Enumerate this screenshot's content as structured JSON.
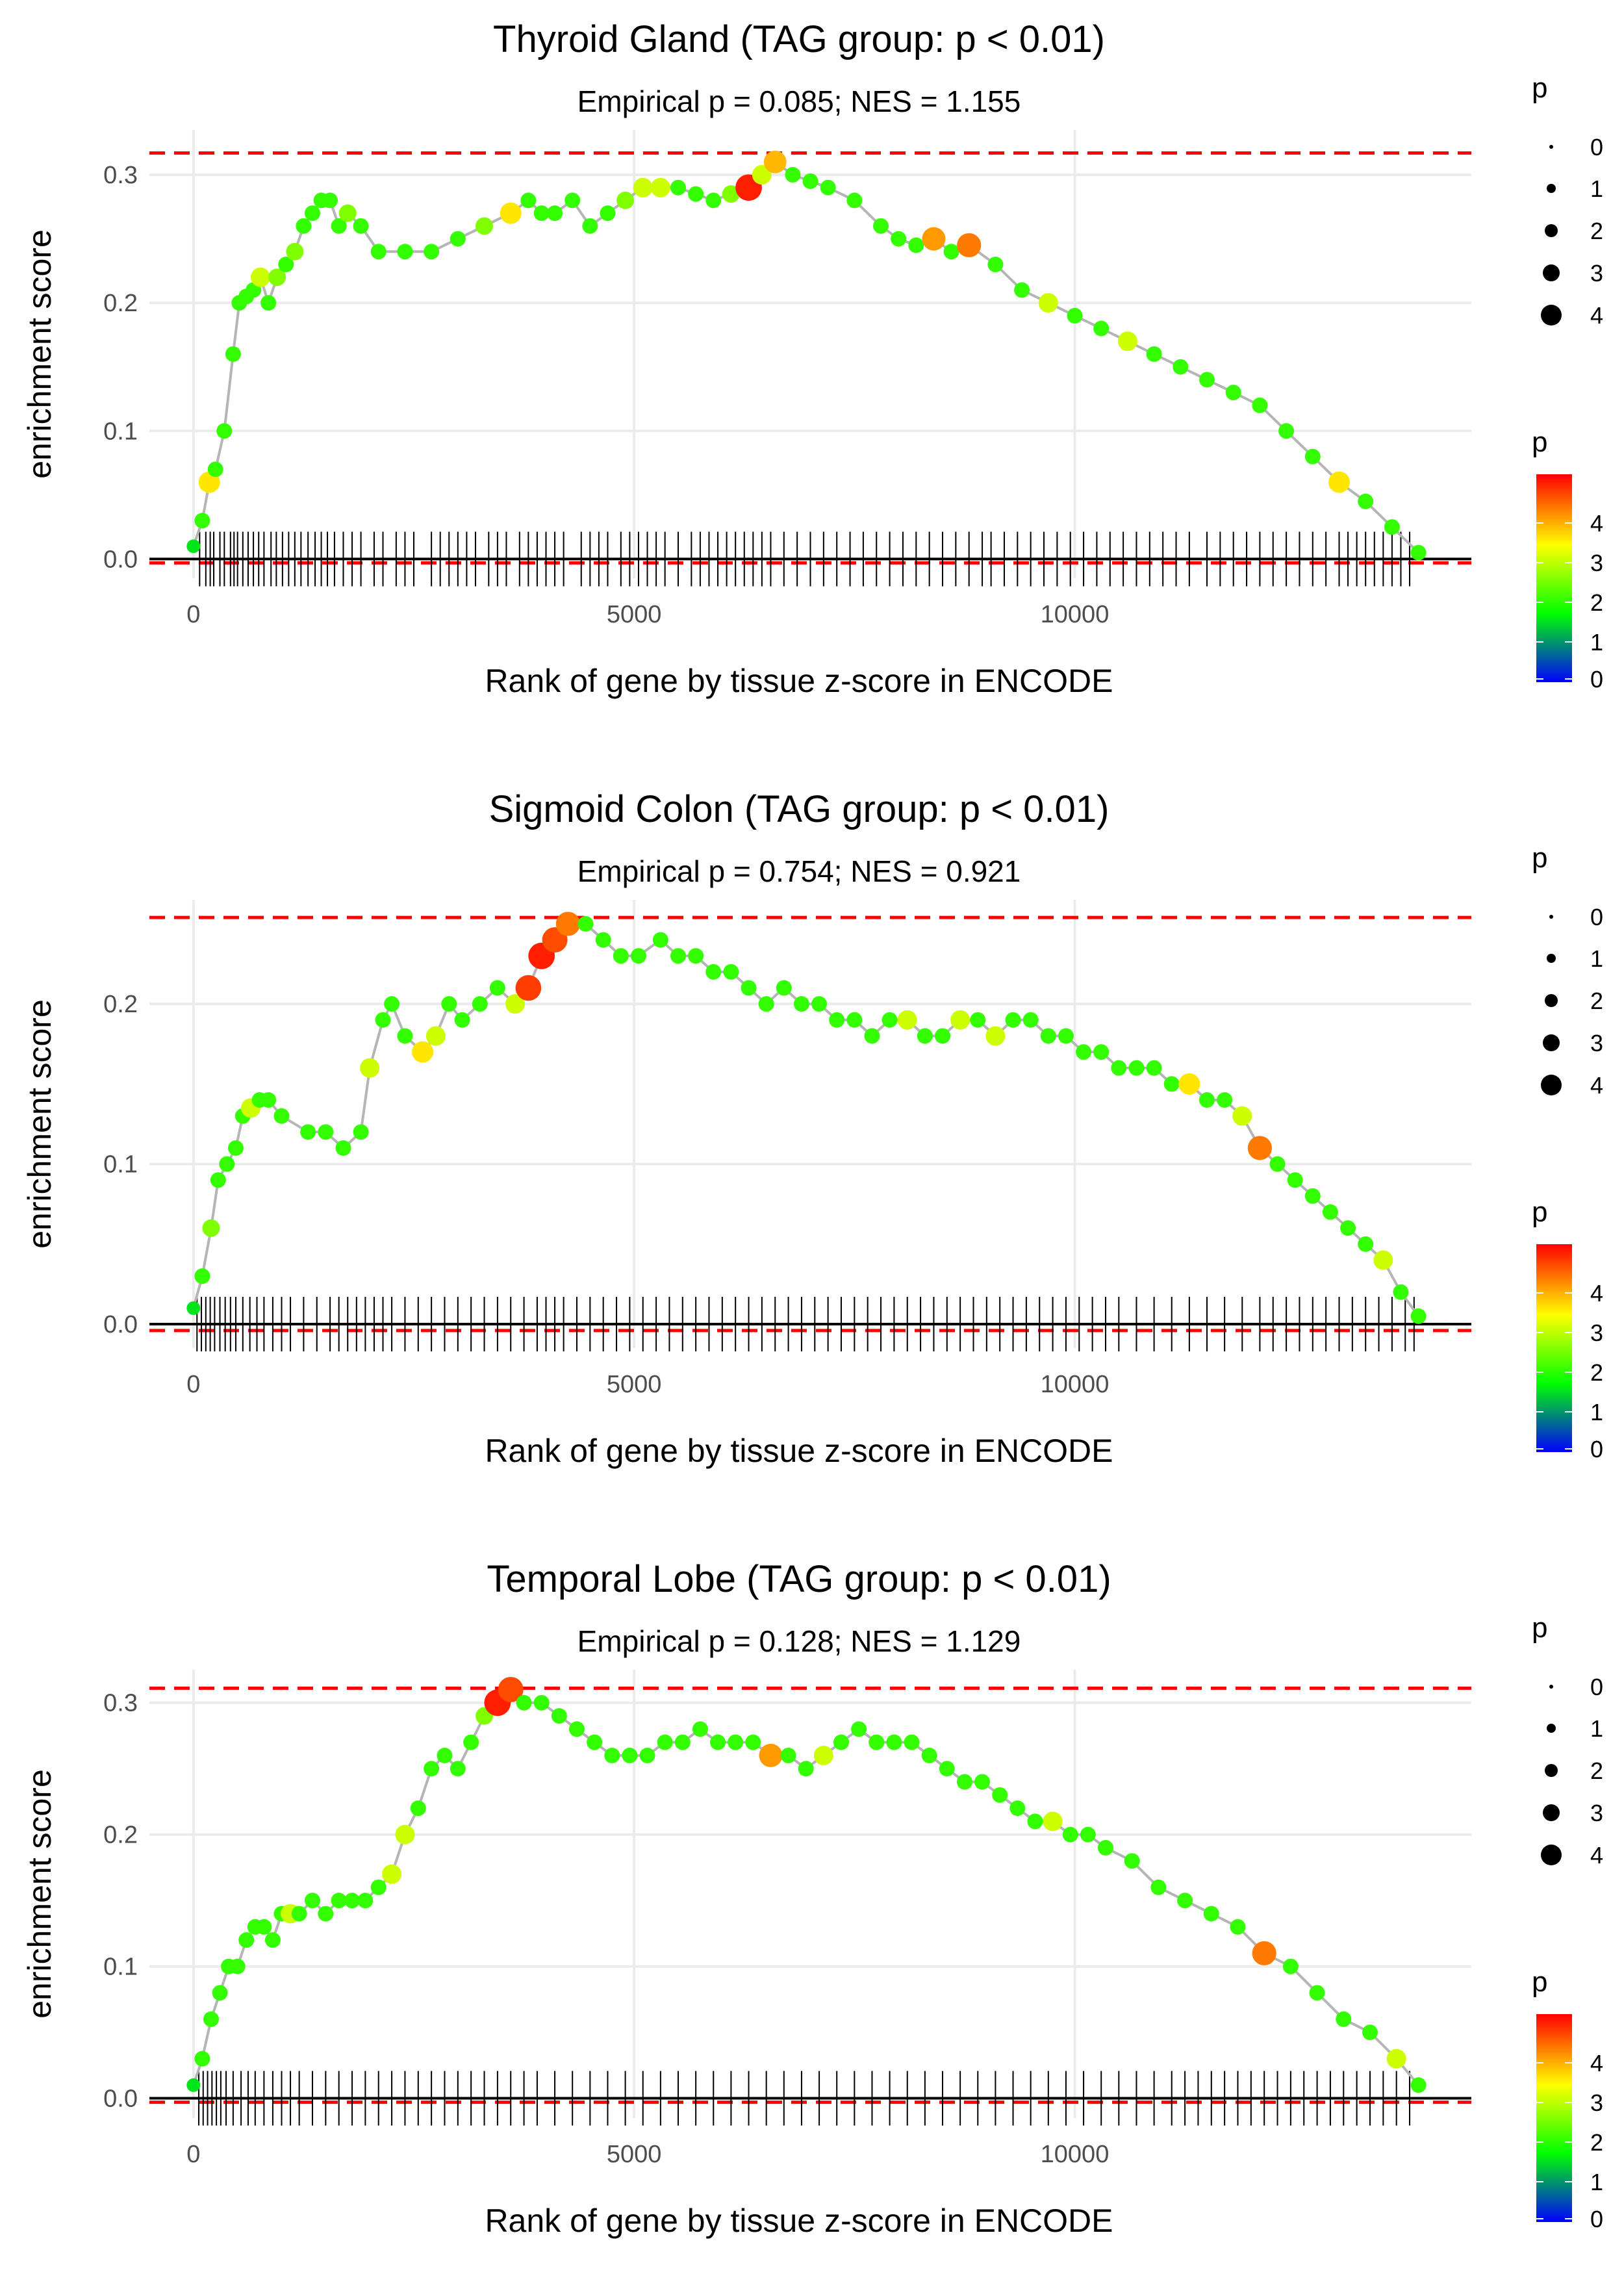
{
  "colors": {
    "grid": "#ebebeb",
    "line": "#b5b5b5",
    "reference": "#ff0000",
    "axis": "#000000",
    "rug": "#000000",
    "gradient": [
      "#0000ff",
      "#00ff00",
      "#ffff00",
      "#ff0000"
    ]
  },
  "legend": {
    "size_title": "p",
    "size_labels": [
      "0",
      "1",
      "2",
      "3",
      "4"
    ],
    "color_title": "p",
    "color_labels": [
      "4",
      "3",
      "2",
      "1",
      "0"
    ]
  },
  "chart_data": [
    {
      "type": "line",
      "title": "Thyroid Gland (TAG group: p < 0.01)",
      "subtitle": "Empirical p = 0.085; NES = 1.155",
      "xlabel": "Rank of gene by tissue z-score in ENCODE",
      "ylabel": "enrichment score",
      "xlim": [
        -500,
        14500
      ],
      "ylim": [
        -0.015,
        0.335
      ],
      "xticks": [
        0,
        5000,
        10000
      ],
      "xtick_labels": [
        "0",
        "5000",
        "10000"
      ],
      "yticks": [
        0,
        0.1,
        0.2,
        0.3
      ],
      "ytick_labels": [
        "0.0",
        "0.1",
        "0.2",
        "0.3"
      ],
      "ref_upper": 0.317,
      "ref_lower": -0.003,
      "series": [
        {
          "name": "running enrichment score",
          "x": [
            0,
            100,
            180,
            250,
            350,
            450,
            520,
            600,
            680,
            760,
            850,
            950,
            1050,
            1150,
            1250,
            1350,
            1450,
            1550,
            1650,
            1750,
            1900,
            2100,
            2400,
            2700,
            3000,
            3300,
            3600,
            3800,
            3950,
            4100,
            4300,
            4500,
            4700,
            4900,
            5100,
            5300,
            5500,
            5700,
            5900,
            6100,
            6300,
            6450,
            6600,
            6800,
            7000,
            7200,
            7500,
            7800,
            8000,
            8200,
            8400,
            8600,
            8800,
            9100,
            9400,
            9700,
            10000,
            10300,
            10600,
            10900,
            11200,
            11500,
            11800,
            12100,
            12400,
            12700,
            13000,
            13300,
            13600,
            13900
          ],
          "values": [
            0.01,
            0.03,
            0.06,
            0.07,
            0.1,
            0.16,
            0.2,
            0.205,
            0.21,
            0.22,
            0.2,
            0.22,
            0.23,
            0.24,
            0.26,
            0.27,
            0.28,
            0.28,
            0.26,
            0.27,
            0.26,
            0.24,
            0.24,
            0.24,
            0.25,
            0.26,
            0.27,
            0.28,
            0.27,
            0.27,
            0.28,
            0.26,
            0.27,
            0.28,
            0.29,
            0.29,
            0.29,
            0.285,
            0.28,
            0.285,
            0.29,
            0.3,
            0.31,
            0.3,
            0.295,
            0.29,
            0.28,
            0.26,
            0.25,
            0.245,
            0.25,
            0.24,
            0.245,
            0.23,
            0.21,
            0.2,
            0.19,
            0.18,
            0.17,
            0.16,
            0.15,
            0.14,
            0.13,
            0.12,
            0.1,
            0.08,
            0.06,
            0.045,
            0.025,
            0.005
          ],
          "p": [
            1.5,
            2,
            3.5,
            2,
            2,
            2,
            2,
            2,
            2,
            3,
            2,
            2.5,
            2,
            2.5,
            2,
            2,
            2,
            2,
            2,
            2.5,
            2,
            2,
            2,
            2,
            2,
            2.5,
            3.5,
            2,
            2,
            2,
            2,
            2,
            2,
            2.5,
            3,
            3,
            2,
            2,
            2,
            2.5,
            4.8,
            3,
            3.8,
            2,
            2,
            2,
            2,
            2,
            2,
            2,
            4,
            2,
            4.2,
            2,
            2,
            3,
            2,
            2,
            3,
            2,
            2,
            2,
            2,
            2,
            2,
            2,
            3.5,
            2,
            2,
            2
          ]
        }
      ],
      "rug_x": [
        70,
        140,
        190,
        230,
        300,
        350,
        420,
        460,
        500,
        560,
        620,
        680,
        740,
        800,
        880,
        940,
        1010,
        1080,
        1150,
        1220,
        1300,
        1380,
        1450,
        1520,
        1600,
        1700,
        1800,
        1900,
        2050,
        2150,
        2300,
        2400,
        2500,
        2700,
        2800,
        2900,
        3000,
        3100,
        3200,
        3350,
        3450,
        3550,
        3700,
        3800,
        3900,
        4000,
        4100,
        4200,
        4400,
        4500,
        4600,
        4700,
        4850,
        4950,
        5050,
        5150,
        5250,
        5350,
        5500,
        5650,
        5750,
        5850,
        5950,
        6050,
        6150,
        6250,
        6350,
        6450,
        6550,
        6700,
        6850,
        7000,
        7150,
        7300,
        7450,
        7600,
        7750,
        7900,
        8050,
        8200,
        8350,
        8500,
        8650,
        8800,
        8950,
        9050,
        9200,
        9350,
        9500,
        9650,
        9800,
        9950,
        10100,
        10250,
        10400,
        10550,
        10700,
        10850,
        11000,
        11150,
        11300,
        11500,
        11650,
        11800,
        11950,
        12100,
        12250,
        12400,
        12550,
        12700,
        12850,
        13000,
        13100,
        13200,
        13300,
        13400,
        13500,
        13600,
        13700,
        13800
      ]
    },
    {
      "type": "line",
      "title": "Sigmoid Colon (TAG group: p < 0.01)",
      "subtitle": "Empirical p = 0.754; NES = 0.921",
      "xlabel": "Rank of gene by tissue z-score in ENCODE",
      "ylabel": "enrichment score",
      "xlim": [
        -500,
        14500
      ],
      "ylim": [
        -0.015,
        0.265
      ],
      "xticks": [
        0,
        5000,
        10000
      ],
      "xtick_labels": [
        "0",
        "5000",
        "10000"
      ],
      "yticks": [
        0,
        0.1,
        0.2
      ],
      "ytick_labels": [
        "0.0",
        "0.1",
        "0.2"
      ],
      "ref_upper": 0.254,
      "ref_lower": -0.004,
      "series": [
        {
          "name": "running enrichment score",
          "x": [
            0,
            100,
            200,
            280,
            380,
            480,
            560,
            650,
            750,
            850,
            1000,
            1300,
            1500,
            1700,
            1900,
            2000,
            2150,
            2250,
            2400,
            2600,
            2750,
            2900,
            3050,
            3250,
            3450,
            3650,
            3800,
            3950,
            4100,
            4250,
            4450,
            4650,
            4850,
            5050,
            5300,
            5500,
            5700,
            5900,
            6100,
            6300,
            6500,
            6700,
            6900,
            7100,
            7300,
            7500,
            7700,
            7900,
            8100,
            8300,
            8500,
            8700,
            8900,
            9100,
            9300,
            9500,
            9700,
            9900,
            10100,
            10300,
            10500,
            10700,
            10900,
            11100,
            11300,
            11500,
            11700,
            11900,
            12100,
            12300,
            12500,
            12700,
            12900,
            13100,
            13300,
            13500,
            13700,
            13900
          ],
          "values": [
            0.01,
            0.03,
            0.06,
            0.09,
            0.1,
            0.11,
            0.13,
            0.135,
            0.14,
            0.14,
            0.13,
            0.12,
            0.12,
            0.11,
            0.12,
            0.16,
            0.19,
            0.2,
            0.18,
            0.17,
            0.18,
            0.2,
            0.19,
            0.2,
            0.21,
            0.2,
            0.21,
            0.23,
            0.24,
            0.25,
            0.25,
            0.24,
            0.23,
            0.23,
            0.24,
            0.23,
            0.23,
            0.22,
            0.22,
            0.21,
            0.2,
            0.21,
            0.2,
            0.2,
            0.19,
            0.19,
            0.18,
            0.19,
            0.19,
            0.18,
            0.18,
            0.19,
            0.19,
            0.18,
            0.19,
            0.19,
            0.18,
            0.18,
            0.17,
            0.17,
            0.16,
            0.16,
            0.16,
            0.15,
            0.15,
            0.14,
            0.14,
            0.13,
            0.11,
            0.1,
            0.09,
            0.08,
            0.07,
            0.06,
            0.05,
            0.04,
            0.02,
            0.005
          ],
          "p": [
            1.5,
            2,
            2.5,
            2,
            2,
            2,
            2,
            3,
            2,
            2,
            2,
            2,
            2,
            2,
            2,
            3,
            2,
            2,
            2,
            3.5,
            3,
            2,
            2,
            2,
            2,
            3,
            4.6,
            4.8,
            4.5,
            4.2,
            2,
            2,
            2,
            2,
            2,
            2,
            2,
            2,
            2,
            2,
            2,
            2,
            2,
            2,
            2,
            2,
            2,
            2,
            3,
            2,
            2,
            3,
            2,
            3,
            2,
            2,
            2,
            2,
            2,
            2,
            2,
            2,
            2,
            2,
            3.5,
            2,
            2,
            3,
            4.2,
            2,
            2,
            2,
            2,
            2,
            2,
            3,
            2,
            2
          ]
        }
      ],
      "rug_x": [
        40,
        90,
        140,
        190,
        240,
        300,
        360,
        420,
        480,
        560,
        640,
        720,
        800,
        900,
        1000,
        1100,
        1250,
        1400,
        1550,
        1650,
        1750,
        1850,
        1950,
        2050,
        2150,
        2250,
        2400,
        2550,
        2700,
        2850,
        3000,
        3150,
        3300,
        3450,
        3600,
        3750,
        3900,
        4000,
        4100,
        4200,
        4350,
        4500,
        4650,
        4800,
        4950,
        5100,
        5250,
        5400,
        5550,
        5700,
        5850,
        6000,
        6150,
        6300,
        6450,
        6600,
        6750,
        6900,
        7050,
        7200,
        7350,
        7500,
        7650,
        7800,
        7950,
        8100,
        8250,
        8400,
        8550,
        8700,
        8850,
        9000,
        9150,
        9300,
        9450,
        9600,
        9750,
        9900,
        10050,
        10200,
        10350,
        10500,
        10700,
        10900,
        11100,
        11300,
        11500,
        11700,
        11900,
        12100,
        12250,
        12400,
        12550,
        12700,
        12850,
        13000,
        13150,
        13300,
        13450,
        13600,
        13750,
        13850
      ]
    },
    {
      "type": "line",
      "title": "Temporal Lobe (TAG group: p < 0.01)",
      "subtitle": "Empirical p = 0.128; NES = 1.129",
      "xlabel": "Rank of gene by tissue z-score in ENCODE",
      "ylabel": "enrichment score",
      "xlim": [
        -500,
        14500
      ],
      "ylim": [
        -0.015,
        0.325
      ],
      "xticks": [
        0,
        5000,
        10000
      ],
      "xtick_labels": [
        "0",
        "5000",
        "10000"
      ],
      "yticks": [
        0,
        0.1,
        0.2,
        0.3
      ],
      "ytick_labels": [
        "0.0",
        "0.1",
        "0.2",
        "0.3"
      ],
      "ref_upper": 0.311,
      "ref_lower": -0.003,
      "series": [
        {
          "name": "running enrichment score",
          "x": [
            0,
            100,
            200,
            300,
            400,
            500,
            600,
            700,
            800,
            900,
            1000,
            1100,
            1200,
            1350,
            1500,
            1650,
            1800,
            1950,
            2100,
            2250,
            2400,
            2550,
            2700,
            2850,
            3000,
            3150,
            3300,
            3450,
            3600,
            3750,
            3950,
            4150,
            4350,
            4550,
            4750,
            4950,
            5150,
            5350,
            5550,
            5750,
            5950,
            6150,
            6350,
            6550,
            6750,
            6950,
            7150,
            7350,
            7550,
            7750,
            7950,
            8150,
            8350,
            8550,
            8750,
            8950,
            9150,
            9350,
            9550,
            9750,
            9950,
            10150,
            10350,
            10650,
            10950,
            11250,
            11550,
            11850,
            12150,
            12450,
            12750,
            13050,
            13350,
            13650,
            13900
          ],
          "values": [
            0.01,
            0.03,
            0.06,
            0.08,
            0.1,
            0.1,
            0.12,
            0.13,
            0.13,
            0.12,
            0.14,
            0.14,
            0.14,
            0.15,
            0.14,
            0.15,
            0.15,
            0.15,
            0.16,
            0.17,
            0.2,
            0.22,
            0.25,
            0.26,
            0.25,
            0.27,
            0.29,
            0.3,
            0.31,
            0.3,
            0.3,
            0.29,
            0.28,
            0.27,
            0.26,
            0.26,
            0.26,
            0.27,
            0.27,
            0.28,
            0.27,
            0.27,
            0.27,
            0.26,
            0.26,
            0.25,
            0.26,
            0.27,
            0.28,
            0.27,
            0.27,
            0.27,
            0.26,
            0.25,
            0.24,
            0.24,
            0.23,
            0.22,
            0.21,
            0.21,
            0.2,
            0.2,
            0.19,
            0.18,
            0.16,
            0.15,
            0.14,
            0.13,
            0.11,
            0.1,
            0.08,
            0.06,
            0.05,
            0.03,
            0.01
          ],
          "p": [
            1.5,
            2,
            2,
            2,
            2,
            2,
            2,
            2,
            2,
            2,
            2,
            3,
            2,
            2,
            2,
            2,
            2,
            2,
            2,
            3,
            3,
            2,
            2,
            2,
            2,
            2,
            2.5,
            4.8,
            4.5,
            2,
            2,
            2,
            2,
            2,
            2,
            2,
            2,
            2,
            2,
            2,
            2,
            2,
            2,
            4,
            2,
            2,
            3,
            2,
            2,
            2,
            2,
            2,
            2,
            2,
            2,
            2,
            2,
            2,
            2,
            3,
            2,
            2,
            2,
            2,
            2,
            2,
            2,
            2,
            4.2,
            2,
            2,
            2,
            2,
            3,
            2
          ]
        }
      ],
      "rug_x": [
        60,
        110,
        160,
        210,
        260,
        310,
        370,
        450,
        540,
        620,
        700,
        800,
        900,
        1000,
        1100,
        1200,
        1350,
        1500,
        1650,
        1800,
        1950,
        2100,
        2250,
        2400,
        2550,
        2700,
        2850,
        3000,
        3150,
        3300,
        3450,
        3600,
        3750,
        3900,
        4100,
        4300,
        4500,
        4700,
        4900,
        5100,
        5300,
        5500,
        5700,
        5900,
        6100,
        6300,
        6500,
        6700,
        6900,
        7100,
        7300,
        7500,
        7700,
        7900,
        8100,
        8300,
        8500,
        8700,
        8900,
        9100,
        9300,
        9500,
        9700,
        9900,
        10100,
        10300,
        10500,
        10700,
        10900,
        11100,
        11250,
        11400,
        11550,
        11700,
        11850,
        12000,
        12150,
        12300,
        12450,
        12600,
        12750,
        12900,
        13050,
        13200,
        13350,
        13500,
        13650,
        13800
      ]
    }
  ]
}
